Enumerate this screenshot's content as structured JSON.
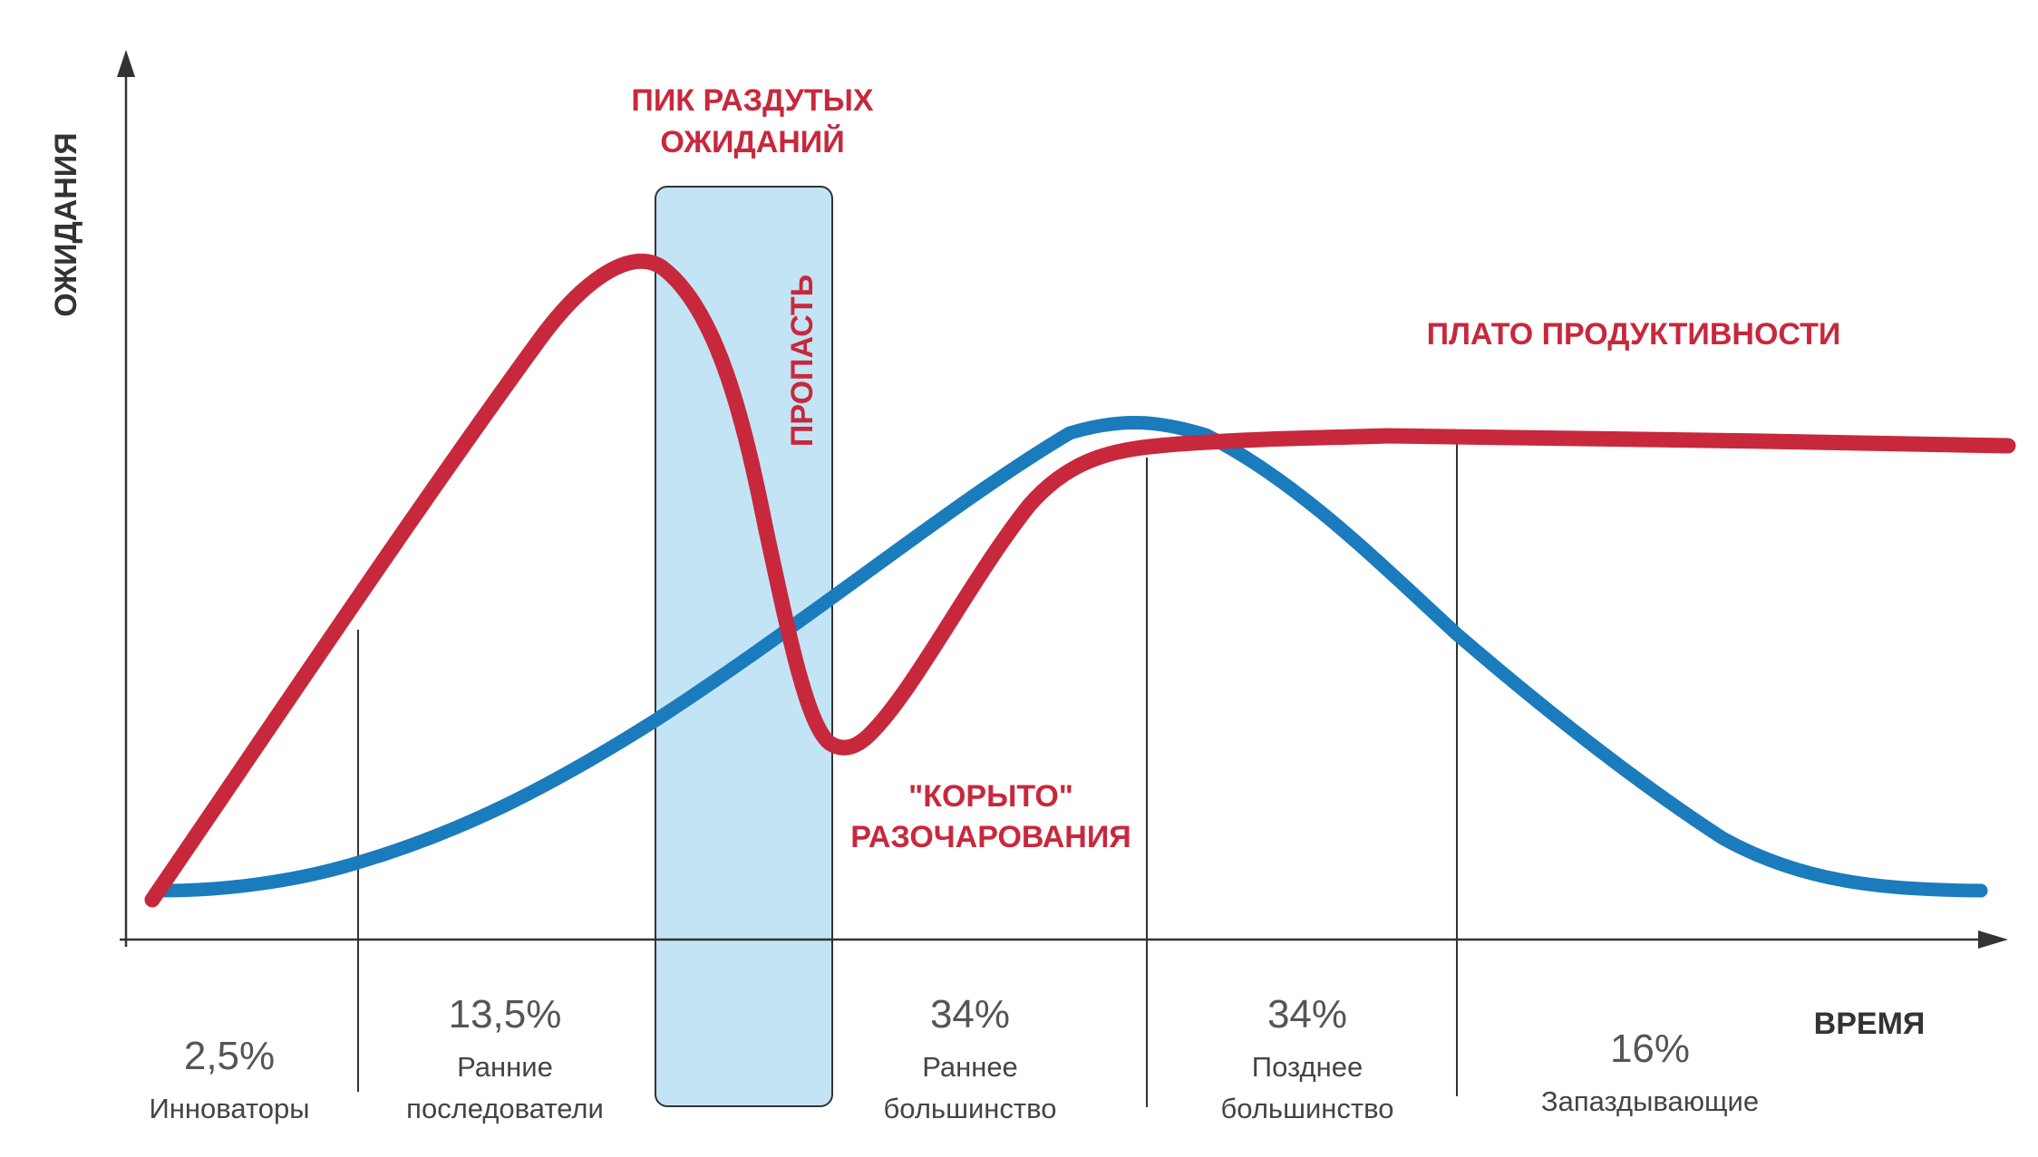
{
  "axes": {
    "y_label": "ОЖИДАНИЯ",
    "x_label": "ВРЕМЯ"
  },
  "annotations": {
    "peak_line1": "ПИК РАЗДУТЫХ",
    "peak_line2": "ОЖИДАНИЙ",
    "chasm": "ПРОПАСТЬ",
    "trough_line1": "\"КОРЫТО\"",
    "trough_line2": "РАЗОЧАРОВАНИЯ",
    "plateau": "ПЛАТО ПРОДУКТИВНОСТИ"
  },
  "segments": [
    {
      "percent": "2,5%",
      "name_line1": "Инноваторы",
      "name_line2": ""
    },
    {
      "percent": "13,5%",
      "name_line1": "Ранние",
      "name_line2": "последователи"
    },
    {
      "percent": "34%",
      "name_line1": "Раннее",
      "name_line2": "большинство"
    },
    {
      "percent": "34%",
      "name_line1": "Позднее",
      "name_line2": "большинство"
    },
    {
      "percent": "16%",
      "name_line1": "Запаздывающие",
      "name_line2": ""
    }
  ],
  "colors": {
    "hype_curve": "#c8283c",
    "adoption_curve": "#1a7bbd",
    "chasm_fill": "#c3e4f5",
    "chasm_stroke": "#333333",
    "axis": "#333333",
    "annotation_text": "#c8283c"
  }
}
